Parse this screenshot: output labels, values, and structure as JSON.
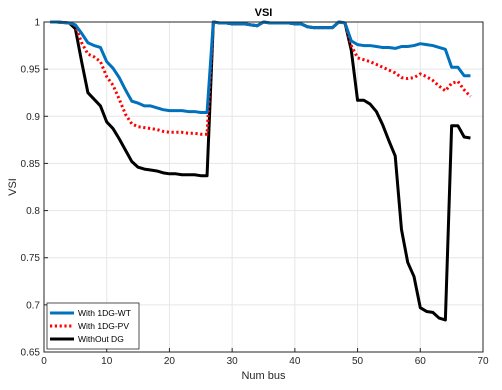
{
  "chart_data": {
    "type": "line",
    "title": "VSI",
    "xlabel": "Num bus",
    "ylabel": "VSI",
    "xlim": [
      0,
      70
    ],
    "ylim": [
      0.65,
      1.0
    ],
    "xticks": [
      0,
      10,
      20,
      30,
      40,
      50,
      60,
      70
    ],
    "yticks": [
      0.65,
      0.7,
      0.75,
      0.8,
      0.85,
      0.9,
      0.95,
      1.0
    ],
    "xtick_labels": [
      "0",
      "10",
      "20",
      "30",
      "40",
      "50",
      "60",
      "70"
    ],
    "ytick_labels": [
      "0.65",
      "0.7",
      "0.75",
      "0.8",
      "0.85",
      "0.9",
      "0.95",
      "1"
    ],
    "grid": true,
    "legend_position": "bottom-left",
    "series": [
      {
        "name": "With 1DG-WT",
        "color": "#0072BD",
        "style": "solid",
        "points": [
          [
            1,
            1.0
          ],
          [
            2,
            1.0
          ],
          [
            3,
            0.9995
          ],
          [
            4,
            0.999
          ],
          [
            5,
            0.997
          ],
          [
            6,
            0.988
          ],
          [
            7,
            0.978
          ],
          [
            8,
            0.975
          ],
          [
            9,
            0.973
          ],
          [
            10,
            0.958
          ],
          [
            11,
            0.951
          ],
          [
            12,
            0.941
          ],
          [
            13,
            0.928
          ],
          [
            14,
            0.916
          ],
          [
            15,
            0.914
          ],
          [
            16,
            0.911
          ],
          [
            17,
            0.911
          ],
          [
            18,
            0.909
          ],
          [
            19,
            0.907
          ],
          [
            20,
            0.906
          ],
          [
            21,
            0.906
          ],
          [
            22,
            0.906
          ],
          [
            23,
            0.905
          ],
          [
            24,
            0.905
          ],
          [
            25,
            0.904
          ],
          [
            26,
            0.904
          ],
          [
            27,
            1.0
          ],
          [
            28,
            0.999
          ],
          [
            29,
            0.999
          ],
          [
            30,
            0.998
          ],
          [
            31,
            0.998
          ],
          [
            32,
            0.998
          ],
          [
            33,
            0.997
          ],
          [
            34,
            0.996
          ],
          [
            35,
            1.0
          ],
          [
            36,
            0.999
          ],
          [
            37,
            0.999
          ],
          [
            38,
            0.999
          ],
          [
            39,
            0.999
          ],
          [
            40,
            0.998
          ],
          [
            41,
            0.998
          ],
          [
            42,
            0.995
          ],
          [
            43,
            0.994
          ],
          [
            44,
            0.994
          ],
          [
            45,
            0.994
          ],
          [
            46,
            0.994
          ],
          [
            47,
            1.0
          ],
          [
            48,
            0.999
          ],
          [
            49,
            0.98
          ],
          [
            50,
            0.976
          ],
          [
            51,
            0.975
          ],
          [
            52,
            0.975
          ],
          [
            53,
            0.974
          ],
          [
            54,
            0.973
          ],
          [
            55,
            0.973
          ],
          [
            56,
            0.972
          ],
          [
            57,
            0.974
          ],
          [
            58,
            0.974
          ],
          [
            59,
            0.975
          ],
          [
            60,
            0.977
          ],
          [
            61,
            0.976
          ],
          [
            62,
            0.975
          ],
          [
            63,
            0.973
          ],
          [
            64,
            0.971
          ],
          [
            65,
            0.952
          ],
          [
            66,
            0.952
          ],
          [
            67,
            0.943
          ],
          [
            68,
            0.943
          ]
        ]
      },
      {
        "name": "With 1DG-PV",
        "color": "#FF0000",
        "style": "dotted",
        "points": [
          [
            1,
            1.0
          ],
          [
            2,
            1.0
          ],
          [
            3,
            0.9995
          ],
          [
            4,
            0.999
          ],
          [
            5,
            0.996
          ],
          [
            6,
            0.978
          ],
          [
            7,
            0.966
          ],
          [
            8,
            0.963
          ],
          [
            9,
            0.958
          ],
          [
            10,
            0.942
          ],
          [
            11,
            0.933
          ],
          [
            12,
            0.918
          ],
          [
            13,
            0.902
          ],
          [
            14,
            0.892
          ],
          [
            15,
            0.889
          ],
          [
            16,
            0.888
          ],
          [
            17,
            0.887
          ],
          [
            18,
            0.886
          ],
          [
            19,
            0.884
          ],
          [
            20,
            0.883
          ],
          [
            21,
            0.883
          ],
          [
            22,
            0.883
          ],
          [
            23,
            0.882
          ],
          [
            24,
            0.882
          ],
          [
            25,
            0.881
          ],
          [
            26,
            0.881
          ],
          [
            27,
            1.0
          ],
          [
            28,
            0.999
          ],
          [
            29,
            0.999
          ],
          [
            30,
            0.998
          ],
          [
            31,
            0.998
          ],
          [
            32,
            0.998
          ],
          [
            33,
            0.997
          ],
          [
            34,
            0.996
          ],
          [
            35,
            1.0
          ],
          [
            36,
            0.999
          ],
          [
            37,
            0.999
          ],
          [
            38,
            0.999
          ],
          [
            39,
            0.999
          ],
          [
            40,
            0.998
          ],
          [
            41,
            0.998
          ],
          [
            42,
            0.995
          ],
          [
            43,
            0.994
          ],
          [
            44,
            0.994
          ],
          [
            45,
            0.994
          ],
          [
            46,
            0.994
          ],
          [
            47,
            1.0
          ],
          [
            48,
            0.999
          ],
          [
            49,
            0.975
          ],
          [
            50,
            0.962
          ],
          [
            51,
            0.96
          ],
          [
            52,
            0.958
          ],
          [
            53,
            0.955
          ],
          [
            54,
            0.952
          ],
          [
            55,
            0.949
          ],
          [
            56,
            0.946
          ],
          [
            57,
            0.941
          ],
          [
            58,
            0.94
          ],
          [
            59,
            0.941
          ],
          [
            60,
            0.945
          ],
          [
            61,
            0.942
          ],
          [
            62,
            0.938
          ],
          [
            63,
            0.932
          ],
          [
            64,
            0.927
          ],
          [
            65,
            0.935
          ],
          [
            66,
            0.937
          ],
          [
            67,
            0.928
          ],
          [
            68,
            0.921
          ]
        ]
      },
      {
        "name": "WithOut DG",
        "color": "#000000",
        "style": "solid",
        "points": [
          [
            1,
            1.0
          ],
          [
            2,
            1.0
          ],
          [
            3,
            0.9995
          ],
          [
            4,
            0.999
          ],
          [
            5,
            0.993
          ],
          [
            6,
            0.958
          ],
          [
            7,
            0.925
          ],
          [
            8,
            0.918
          ],
          [
            9,
            0.911
          ],
          [
            10,
            0.894
          ],
          [
            11,
            0.887
          ],
          [
            12,
            0.876
          ],
          [
            13,
            0.864
          ],
          [
            14,
            0.852
          ],
          [
            15,
            0.846
          ],
          [
            16,
            0.844
          ],
          [
            17,
            0.843
          ],
          [
            18,
            0.842
          ],
          [
            19,
            0.84
          ],
          [
            20,
            0.839
          ],
          [
            21,
            0.839
          ],
          [
            22,
            0.838
          ],
          [
            23,
            0.838
          ],
          [
            24,
            0.838
          ],
          [
            25,
            0.837
          ],
          [
            26,
            0.837
          ],
          [
            27,
            1.0
          ],
          [
            28,
            0.999
          ],
          [
            29,
            0.999
          ],
          [
            30,
            0.998
          ],
          [
            31,
            0.998
          ],
          [
            32,
            0.998
          ],
          [
            33,
            0.997
          ],
          [
            34,
            0.996
          ],
          [
            35,
            1.0
          ],
          [
            36,
            0.999
          ],
          [
            37,
            0.999
          ],
          [
            38,
            0.999
          ],
          [
            39,
            0.999
          ],
          [
            40,
            0.998
          ],
          [
            41,
            0.998
          ],
          [
            42,
            0.995
          ],
          [
            43,
            0.994
          ],
          [
            44,
            0.994
          ],
          [
            45,
            0.994
          ],
          [
            46,
            0.994
          ],
          [
            47,
            1.0
          ],
          [
            48,
            0.999
          ],
          [
            49,
            0.97
          ],
          [
            50,
            0.917
          ],
          [
            51,
            0.917
          ],
          [
            52,
            0.913
          ],
          [
            53,
            0.905
          ],
          [
            54,
            0.891
          ],
          [
            55,
            0.874
          ],
          [
            56,
            0.858
          ],
          [
            57,
            0.78
          ],
          [
            58,
            0.745
          ],
          [
            59,
            0.73
          ],
          [
            60,
            0.697
          ],
          [
            61,
            0.693
          ],
          [
            62,
            0.692
          ],
          [
            63,
            0.686
          ],
          [
            64,
            0.684
          ],
          [
            65,
            0.89
          ],
          [
            66,
            0.89
          ],
          [
            67,
            0.878
          ],
          [
            68,
            0.877
          ]
        ]
      }
    ]
  }
}
